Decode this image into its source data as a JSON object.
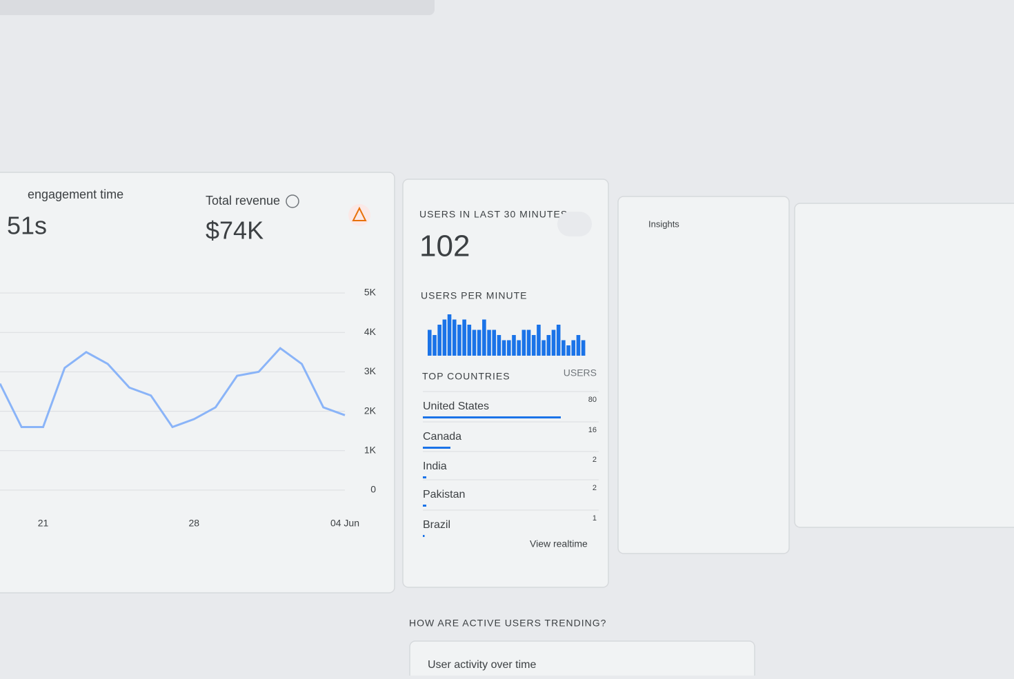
{
  "cards": {
    "engagement": {
      "title": "engagement time",
      "value": "51s"
    },
    "revenue": {
      "title": "Total revenue",
      "value": "$74K"
    },
    "realtime": {
      "title": "USERS IN LAST 30 MINUTES",
      "value": 102,
      "link": "View realtime"
    },
    "insights": {
      "title": "Insights"
    },
    "trending": {
      "title": "HOW ARE ACTIVE USERS TRENDING?",
      "subtitle": "User activity over time"
    }
  },
  "chart_data": [
    {
      "type": "line",
      "color": "#8ab4f8",
      "categories": [
        null,
        null,
        "21",
        null,
        null,
        null,
        null,
        null,
        null,
        "28",
        null,
        null,
        null,
        null,
        null,
        null,
        "04 Jun"
      ],
      "values": [
        2700,
        1600,
        1600,
        3100,
        3500,
        3200,
        2600,
        2400,
        1600,
        1800,
        2100,
        2900,
        3000,
        3600,
        3200,
        2100,
        1900
      ],
      "ylim": [
        0,
        5000
      ],
      "yticks": [
        0,
        {
          "value": 1000,
          "label": "1K"
        },
        {
          "value": 2000,
          "label": "2K"
        },
        {
          "value": 3000,
          "label": "3K"
        },
        {
          "value": 4000,
          "label": "4K"
        },
        {
          "value": 5000,
          "label": "5K"
        }
      ],
      "grid": true
    },
    {
      "type": "bar",
      "title": "USERS PER MINUTE",
      "color": "#1a73e8",
      "values": [
        5,
        4,
        6,
        7,
        8,
        7,
        6,
        7,
        6,
        5,
        5,
        7,
        5,
        5,
        4,
        3,
        3,
        4,
        3,
        5,
        5,
        4,
        6,
        3,
        4,
        5,
        6,
        3,
        2,
        3,
        4,
        3
      ]
    },
    {
      "type": "hbar",
      "title": "TOP COUNTRIES",
      "value_title": "USERS",
      "color": "#1a73e8",
      "categories": [
        "United States",
        "Canada",
        "India",
        "Pakistan",
        "Brazil"
      ],
      "values": [
        80,
        16,
        2,
        2,
        1
      ]
    }
  ]
}
